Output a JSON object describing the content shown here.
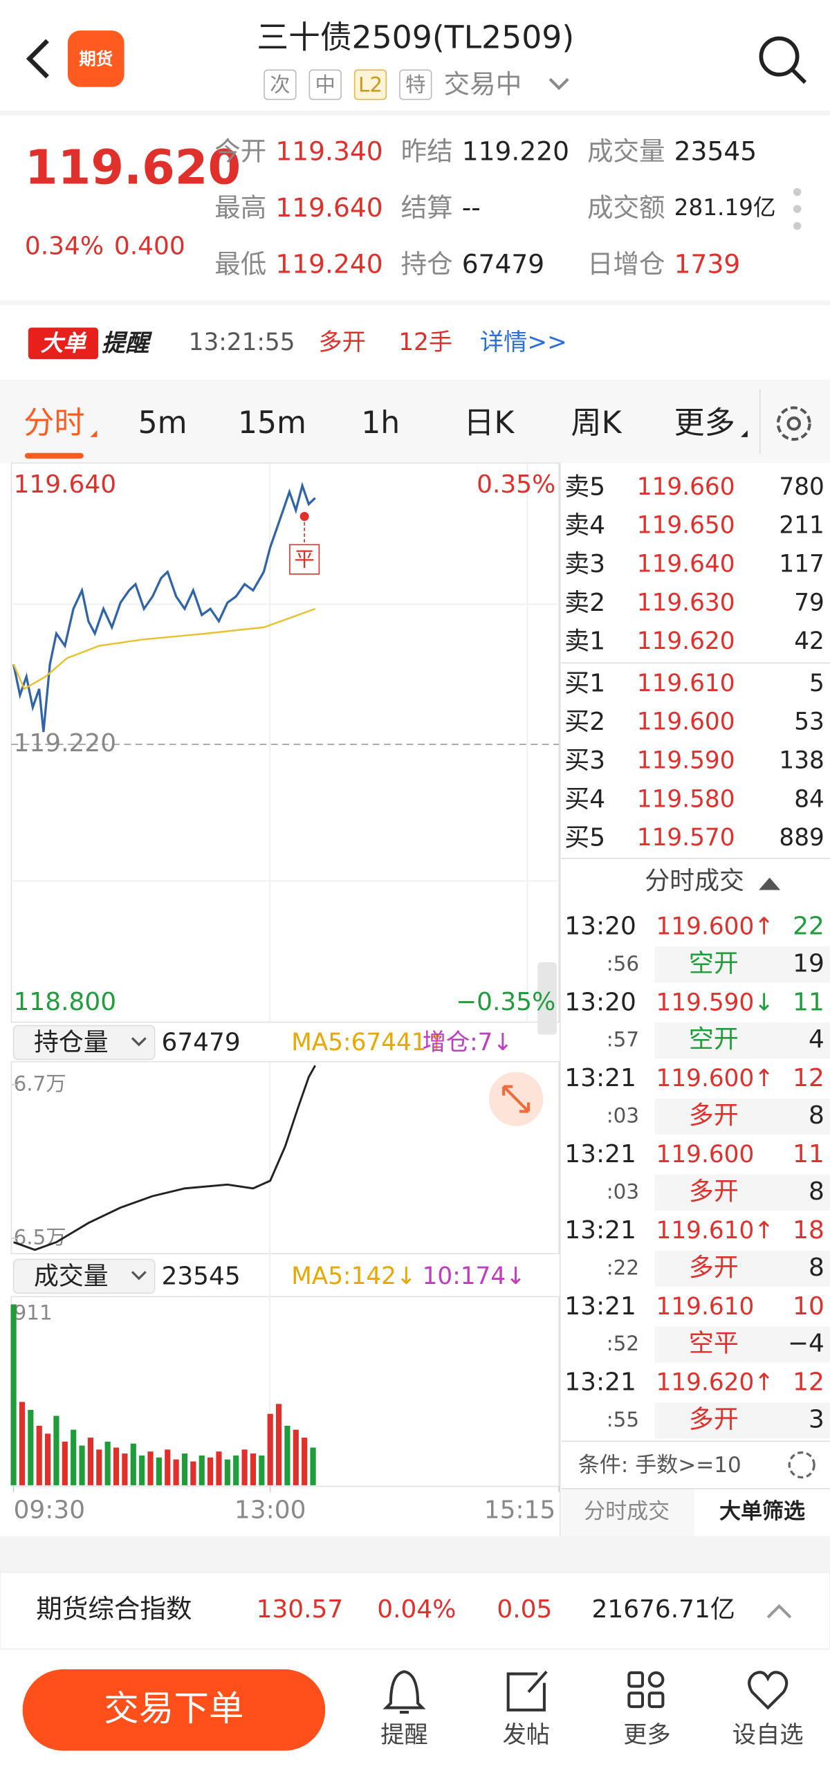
{
  "header": {
    "app_icon": "期货",
    "title": "三十债2509(TL2509)",
    "tags": [
      "次",
      "中",
      "L2",
      "特"
    ],
    "status": "交易中"
  },
  "quote": {
    "price": "119.620",
    "change_pct": "0.34%",
    "change": "0.400",
    "fields": [
      {
        "label": "今开",
        "value": "119.340"
      },
      {
        "label": "昨结",
        "value": "119.220"
      },
      {
        "label": "成交量",
        "value": "23545"
      },
      {
        "label": "最高",
        "value": "119.640"
      },
      {
        "label": "结算",
        "value": "--"
      },
      {
        "label": "成交额",
        "value": "281.19亿"
      },
      {
        "label": "最低",
        "value": "119.240"
      },
      {
        "label": "持仓",
        "value": "67479"
      },
      {
        "label": "日增仓",
        "value": "1739"
      }
    ]
  },
  "alert": {
    "badge": "大单",
    "badge2": "提醒",
    "time": "13:21:55",
    "action": "多开",
    "lots": "12手",
    "link": "详情>>"
  },
  "tabs": [
    "分时",
    "5m",
    "15m",
    "1h",
    "日K",
    "周K",
    "更多"
  ],
  "chart": {
    "type": "line",
    "xlim": [
      0,
      255
    ],
    "xticks": [
      {
        "value": 0,
        "label": "09:30"
      },
      {
        "value": 120,
        "label": "13:00"
      },
      {
        "value": 255,
        "label": "15:15"
      }
    ],
    "ylim": [
      118.8,
      119.64
    ],
    "yticks": [
      {
        "value": 119.64,
        "label": "119.640"
      },
      {
        "value": 119.22,
        "label": "119.220"
      },
      {
        "value": 118.8,
        "label": "118.800"
      }
    ],
    "y2lim": [
      -0.35,
      0.35
    ],
    "y2ticks": [
      {
        "value": 0.35,
        "label": "0.35%"
      },
      {
        "value": -0.35,
        "label": "−0.35%"
      }
    ],
    "series": [
      {
        "color": "#2f64a8",
        "x": [
          0,
          3,
          6,
          9,
          12,
          14,
          17,
          20,
          24,
          28,
          32,
          35,
          38,
          42,
          46,
          50,
          54,
          57,
          61,
          65,
          69,
          72,
          76,
          80,
          84,
          88,
          92,
          96,
          100,
          104,
          108,
          112,
          117,
          120,
          123,
          126,
          129,
          132,
          135,
          138,
          141
        ],
        "values": [
          119.35,
          119.3,
          119.33,
          119.28,
          119.31,
          119.24,
          119.35,
          119.4,
          119.38,
          119.44,
          119.47,
          119.42,
          119.4,
          119.44,
          119.41,
          119.45,
          119.47,
          119.48,
          119.44,
          119.46,
          119.49,
          119.5,
          119.46,
          119.44,
          119.47,
          119.43,
          119.44,
          119.42,
          119.45,
          119.46,
          119.48,
          119.47,
          119.5,
          119.54,
          119.57,
          119.6,
          119.63,
          119.6,
          119.64,
          119.61,
          119.62
        ]
      },
      {
        "color": "#e8c030",
        "x": [
          0,
          5,
          15,
          25,
          40,
          60,
          90,
          117,
          125,
          141
        ],
        "values": [
          119.35,
          119.31,
          119.33,
          119.36,
          119.38,
          119.39,
          119.4,
          119.41,
          119.42,
          119.44
        ]
      }
    ],
    "annotation": {
      "label": "平",
      "x": 136,
      "value": 119.59
    },
    "oi": {
      "label": "持仓量",
      "value": "67479",
      "ma": "MA5:67441↑",
      "change": "增仓:7↓",
      "color": "#222",
      "x": [
        0,
        10,
        20,
        35,
        50,
        65,
        80,
        100,
        112,
        120,
        127,
        133,
        138,
        141
      ],
      "values": [
        64950,
        64850,
        64950,
        65200,
        65400,
        65550,
        65650,
        65700,
        65650,
        65750,
        66200,
        66700,
        67100,
        67250
      ],
      "ylim": [
        64800,
        67300
      ],
      "yticks": [
        {
          "value": 67000,
          "label": "6.7万"
        },
        {
          "value": 65000,
          "label": "6.5万"
        }
      ]
    },
    "volume": {
      "label": "成交量",
      "value": "23545",
      "ma": "MA5:142↓",
      "ma10": "10:174↓",
      "x": [
        0,
        4,
        8,
        12,
        16,
        20,
        24,
        28,
        32,
        36,
        40,
        44,
        48,
        52,
        56,
        60,
        64,
        68,
        72,
        76,
        80,
        84,
        88,
        92,
        96,
        100,
        104,
        108,
        112,
        116,
        120,
        124,
        128,
        132,
        136,
        140
      ],
      "values": [
        911,
        420,
        380,
        300,
        260,
        350,
        220,
        280,
        200,
        240,
        180,
        220,
        190,
        160,
        210,
        150,
        170,
        140,
        180,
        130,
        160,
        120,
        150,
        140,
        170,
        130,
        150,
        180,
        160,
        150,
        360,
        410,
        300,
        280,
        240,
        190
      ],
      "colors": [
        "#1f9d3a",
        "#e0302b",
        "#1f9d3a",
        "#e0302b",
        "#e0302b",
        "#1f9d3a",
        "#e0302b",
        "#1f9d3a",
        "#1f9d3a",
        "#e0302b",
        "#e0302b",
        "#1f9d3a",
        "#e0302b",
        "#e0302b",
        "#1f9d3a",
        "#1f9d3a",
        "#e0302b",
        "#1f9d3a",
        "#e0302b",
        "#e0302b",
        "#1f9d3a",
        "#e0302b",
        "#1f9d3a",
        "#e0302b",
        "#e0302b",
        "#1f9d3a",
        "#1f9d3a",
        "#e0302b",
        "#e0302b",
        "#1f9d3a",
        "#e0302b",
        "#e0302b",
        "#1f9d3a",
        "#e0302b",
        "#e0302b",
        "#1f9d3a"
      ],
      "ylim": [
        0,
        911
      ],
      "yticks": [
        911
      ]
    }
  },
  "order_book": {
    "asks": [
      {
        "label": "卖5",
        "price": "119.660",
        "qty": "780"
      },
      {
        "label": "卖4",
        "price": "119.650",
        "qty": "211"
      },
      {
        "label": "卖3",
        "price": "119.640",
        "qty": "117"
      },
      {
        "label": "卖2",
        "price": "119.630",
        "qty": "79"
      },
      {
        "label": "卖1",
        "price": "119.620",
        "qty": "42"
      }
    ],
    "bids": [
      {
        "label": "买1",
        "price": "119.610",
        "qty": "5"
      },
      {
        "label": "买2",
        "price": "119.600",
        "qty": "53"
      },
      {
        "label": "买3",
        "price": "119.590",
        "qty": "138"
      },
      {
        "label": "买4",
        "price": "119.580",
        "qty": "84"
      },
      {
        "label": "买5",
        "price": "119.570",
        "qty": "889"
      }
    ]
  },
  "ticks_title": "分时成交",
  "ticks": [
    {
      "time": "13:20",
      "sec": ":56",
      "price": "119.600",
      "dir": "↑",
      "qty": "22",
      "type": "空开",
      "oi": "19",
      "color": "#1f9d3a"
    },
    {
      "time": "13:20",
      "sec": ":57",
      "price": "119.590",
      "dir": "↓",
      "qty": "11",
      "type": "空开",
      "oi": "4",
      "color": "#1f9d3a"
    },
    {
      "time": "13:21",
      "sec": ":03",
      "price": "119.600",
      "dir": "↑",
      "qty": "12",
      "type": "多开",
      "oi": "8",
      "color": "#e0302b"
    },
    {
      "time": "13:21",
      "sec": ":03",
      "price": "119.600",
      "qty": "11",
      "type": "多开",
      "oi": "8",
      "color": "#e0302b"
    },
    {
      "time": "13:21",
      "sec": ":22",
      "price": "119.610",
      "dir": "↑",
      "qty": "18",
      "type": "多开",
      "oi": "8",
      "color": "#e0302b"
    },
    {
      "time": "13:21",
      "sec": ":52",
      "price": "119.610",
      "qty": "10",
      "type": "空平",
      "oi": "−4",
      "color": "#e0302b"
    },
    {
      "time": "13:21",
      "sec": ":55",
      "price": "119.620",
      "dir": "↑",
      "qty": "12",
      "type": "多开",
      "oi": "3",
      "color": "#e0302b"
    }
  ],
  "condition": "条件: 手数>=10",
  "bottom_tabs": [
    "分时成交",
    "大单筛选"
  ],
  "index_bar": {
    "name": "期货综合指数",
    "value": "130.57",
    "pct": "0.04%",
    "chg": "0.05",
    "amount": "21676.71亿"
  },
  "footer": {
    "button": "交易下单",
    "nav": [
      "提醒",
      "发帖",
      "更多",
      "设自选"
    ]
  }
}
